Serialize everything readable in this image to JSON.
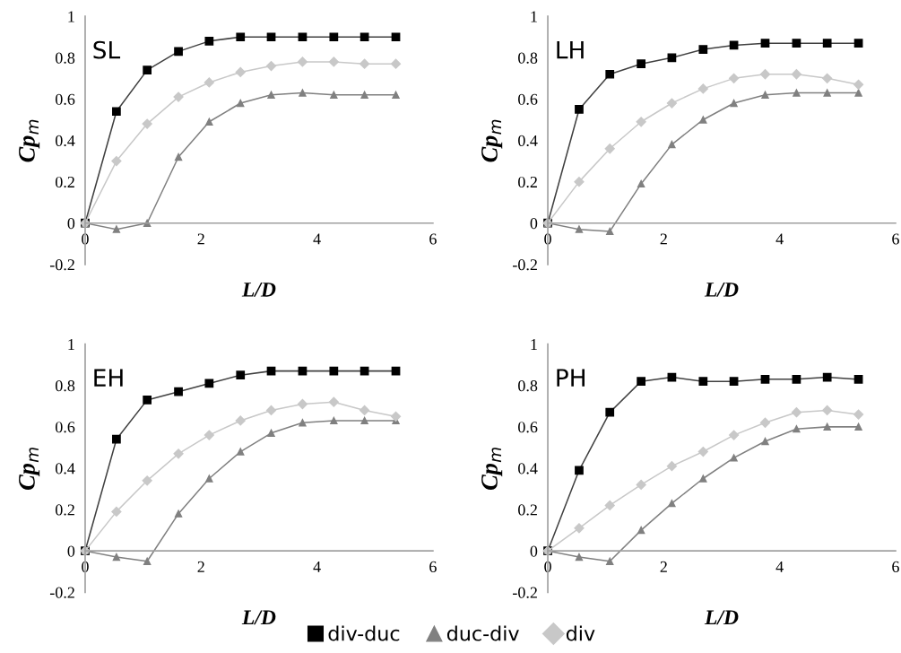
{
  "chart_data": [
    {
      "type": "line",
      "xlabel": "L/D",
      "ylabel": "Cp$_{m}$",
      "annotations": [
        "SL"
      ],
      "xlim": [
        0,
        6
      ],
      "xticks": [
        0,
        2,
        4,
        6
      ],
      "ylim": [
        -0.2,
        1
      ],
      "yticks": [
        -0.2,
        0,
        0.2,
        0.4,
        0.6,
        0.8,
        1
      ],
      "grid": false,
      "x": [
        0,
        0.54,
        1.07,
        1.61,
        2.14,
        2.68,
        3.21,
        3.75,
        4.29,
        4.82,
        5.36
      ],
      "series": [
        {
          "color": "#000000",
          "marker": "square",
          "values": [
            0,
            0.54,
            0.74,
            0.83,
            0.88,
            0.9,
            0.9,
            0.9,
            0.9,
            0.9,
            0.9
          ]
        },
        {
          "color": "#808080",
          "marker": "triangle",
          "values": [
            0,
            -0.03,
            0,
            0.32,
            0.49,
            0.58,
            0.62,
            0.63,
            0.62,
            0.62,
            0.62
          ]
        },
        {
          "color": "#c8c8c8",
          "marker": "diamond",
          "values": [
            0,
            0.3,
            0.48,
            0.61,
            0.68,
            0.73,
            0.76,
            0.78,
            0.78,
            0.77,
            0.77
          ]
        }
      ]
    },
    {
      "type": "line",
      "xlabel": "L/D",
      "ylabel": "Cp$_{m}$",
      "annotations": [
        "LH"
      ],
      "xlim": [
        0,
        6
      ],
      "xticks": [
        0,
        2,
        4,
        6
      ],
      "ylim": [
        -0.2,
        1
      ],
      "yticks": [
        -0.2,
        0,
        0.2,
        0.4,
        0.6,
        0.8,
        1
      ],
      "grid": false,
      "x": [
        0,
        0.54,
        1.07,
        1.61,
        2.14,
        2.68,
        3.21,
        3.75,
        4.29,
        4.82,
        5.36
      ],
      "series": [
        {
          "color": "#000000",
          "marker": "square",
          "values": [
            0,
            0.55,
            0.72,
            0.77,
            0.8,
            0.84,
            0.86,
            0.87,
            0.87,
            0.87,
            0.87
          ]
        },
        {
          "color": "#808080",
          "marker": "triangle",
          "values": [
            0,
            -0.03,
            -0.04,
            0.19,
            0.38,
            0.5,
            0.58,
            0.62,
            0.63,
            0.63,
            0.63
          ]
        },
        {
          "color": "#c8c8c8",
          "marker": "diamond",
          "values": [
            0,
            0.2,
            0.36,
            0.49,
            0.58,
            0.65,
            0.7,
            0.72,
            0.72,
            0.7,
            0.67
          ]
        }
      ]
    },
    {
      "type": "line",
      "xlabel": "L/D",
      "ylabel": "Cp$_{m}$",
      "annotations": [
        "EH"
      ],
      "xlim": [
        0,
        6
      ],
      "xticks": [
        0,
        2,
        4,
        6
      ],
      "ylim": [
        -0.2,
        1
      ],
      "yticks": [
        -0.2,
        0,
        0.2,
        0.4,
        0.6,
        0.8,
        1
      ],
      "grid": false,
      "x": [
        0,
        0.54,
        1.07,
        1.61,
        2.14,
        2.68,
        3.21,
        3.75,
        4.29,
        4.82,
        5.36
      ],
      "series": [
        {
          "color": "#000000",
          "marker": "square",
          "values": [
            0,
            0.54,
            0.73,
            0.77,
            0.81,
            0.85,
            0.87,
            0.87,
            0.87,
            0.87,
            0.87
          ]
        },
        {
          "color": "#808080",
          "marker": "triangle",
          "values": [
            0,
            -0.03,
            -0.05,
            0.18,
            0.35,
            0.48,
            0.57,
            0.62,
            0.63,
            0.63,
            0.63
          ]
        },
        {
          "color": "#c8c8c8",
          "marker": "diamond",
          "values": [
            0,
            0.19,
            0.34,
            0.47,
            0.56,
            0.63,
            0.68,
            0.71,
            0.72,
            0.68,
            0.65
          ]
        }
      ]
    },
    {
      "type": "line",
      "xlabel": "L/D",
      "ylabel": "Cp$_{m}$",
      "annotations": [
        "PH"
      ],
      "xlim": [
        0,
        6
      ],
      "xticks": [
        0,
        2,
        4,
        6
      ],
      "ylim": [
        -0.2,
        1
      ],
      "yticks": [
        -0.2,
        0,
        0.2,
        0.4,
        0.6,
        0.8,
        1
      ],
      "grid": false,
      "legend": "bottom",
      "x": [
        0,
        0.54,
        1.07,
        1.61,
        2.14,
        2.68,
        3.21,
        3.75,
        4.29,
        4.82,
        5.36
      ],
      "series": [
        {
          "name": "div-duc",
          "color": "#000000",
          "marker": "square",
          "values": [
            0,
            0.39,
            0.67,
            0.82,
            0.84,
            0.82,
            0.82,
            0.83,
            0.83,
            0.84,
            0.83
          ]
        },
        {
          "name": "duc-div",
          "color": "#808080",
          "marker": "triangle",
          "values": [
            0,
            -0.03,
            -0.05,
            0.1,
            0.23,
            0.35,
            0.45,
            0.53,
            0.59,
            0.6,
            0.6
          ]
        },
        {
          "name": "div",
          "color": "#c8c8c8",
          "marker": "diamond",
          "values": [
            0,
            0.11,
            0.22,
            0.32,
            0.41,
            0.48,
            0.56,
            0.62,
            0.67,
            0.68,
            0.66
          ]
        }
      ]
    }
  ]
}
